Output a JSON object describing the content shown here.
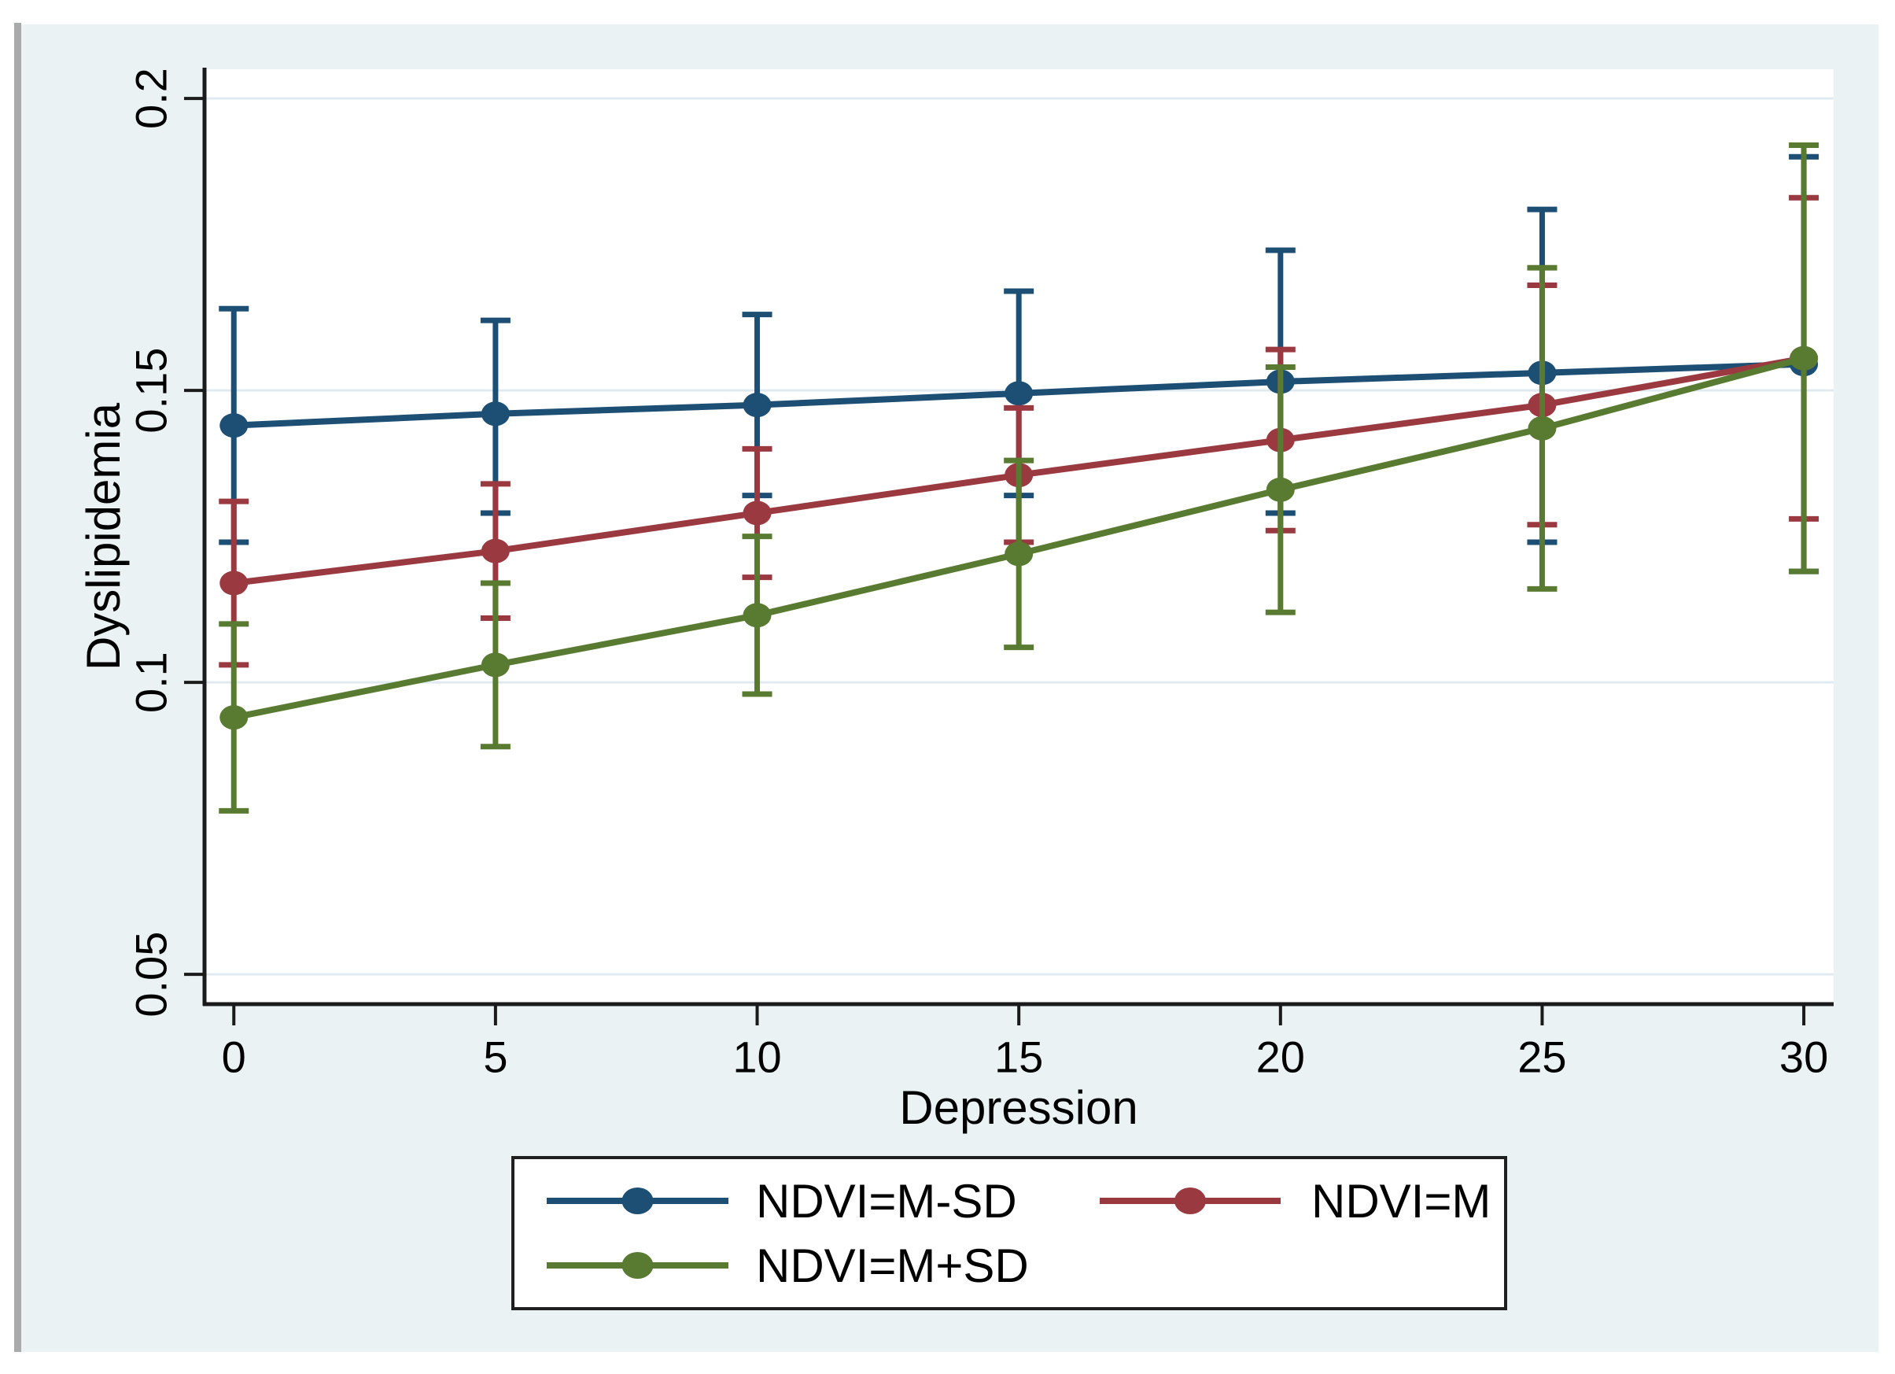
{
  "window": {
    "background": "#ffffff",
    "left_divider_color": "#a9abaa",
    "canvas_background": "#eaf2f3",
    "plot_background": "#ffffff",
    "axis_color": "#1a1a1a",
    "grid_color": "#e0eaf0",
    "text_color": "#000000",
    "legend_border_color": "#1f1f1f",
    "legend_background": "#ffffff"
  },
  "chart_data": {
    "type": "line",
    "title": "",
    "xlabel": "Depression",
    "ylabel": "Dyslipidemia",
    "x_tick_labels": [
      "0",
      "5",
      "10",
      "15",
      "20",
      "25",
      "30"
    ],
    "x_tick_values": [
      0,
      5,
      10,
      15,
      20,
      25,
      30
    ],
    "y_tick_labels": [
      "0.05",
      "0.1",
      "0.15",
      "0.2"
    ],
    "y_tick_values": [
      0.05,
      0.1,
      0.15,
      0.2
    ],
    "xlim": [
      -0.56,
      30.57
    ],
    "ylim": [
      0.0449,
      0.205
    ],
    "grid": "horizontal gridlines at y ticks",
    "marker": "filled ellipse",
    "error_bars": true,
    "x": [
      0,
      5,
      10,
      15,
      20,
      25,
      30
    ],
    "series": [
      {
        "name": "NDVI=M-SD",
        "color": "#1d4e74",
        "values": [
          0.144,
          0.146,
          0.1475,
          0.1495,
          0.1515,
          0.153,
          0.1545
        ],
        "ci_low": [
          0.124,
          0.129,
          0.132,
          0.132,
          0.129,
          0.124,
          0.119
        ],
        "ci_high": [
          0.164,
          0.162,
          0.163,
          0.167,
          0.174,
          0.181,
          0.19
        ]
      },
      {
        "name": "NDVI=M",
        "color": "#9a3a40",
        "values": [
          0.117,
          0.1225,
          0.129,
          0.1355,
          0.1415,
          0.1475,
          0.1555
        ],
        "ci_low": [
          0.103,
          0.111,
          0.118,
          0.124,
          0.126,
          0.127,
          0.128
        ],
        "ci_high": [
          0.131,
          0.134,
          0.14,
          0.147,
          0.157,
          0.168,
          0.183
        ]
      },
      {
        "name": "NDVI=M+SD",
        "color": "#597b31",
        "values": [
          0.094,
          0.103,
          0.1115,
          0.122,
          0.133,
          0.1435,
          0.1555
        ],
        "ci_low": [
          0.078,
          0.089,
          0.098,
          0.106,
          0.112,
          0.116,
          0.119
        ],
        "ci_high": [
          0.11,
          0.117,
          0.125,
          0.138,
          0.154,
          0.171,
          0.192
        ]
      }
    ],
    "legend_position": "boxed legend centered below plot, 2 rows",
    "legend_rows": [
      [
        "NDVI=M-SD",
        "NDVI=M"
      ],
      [
        "NDVI=M+SD"
      ]
    ]
  }
}
